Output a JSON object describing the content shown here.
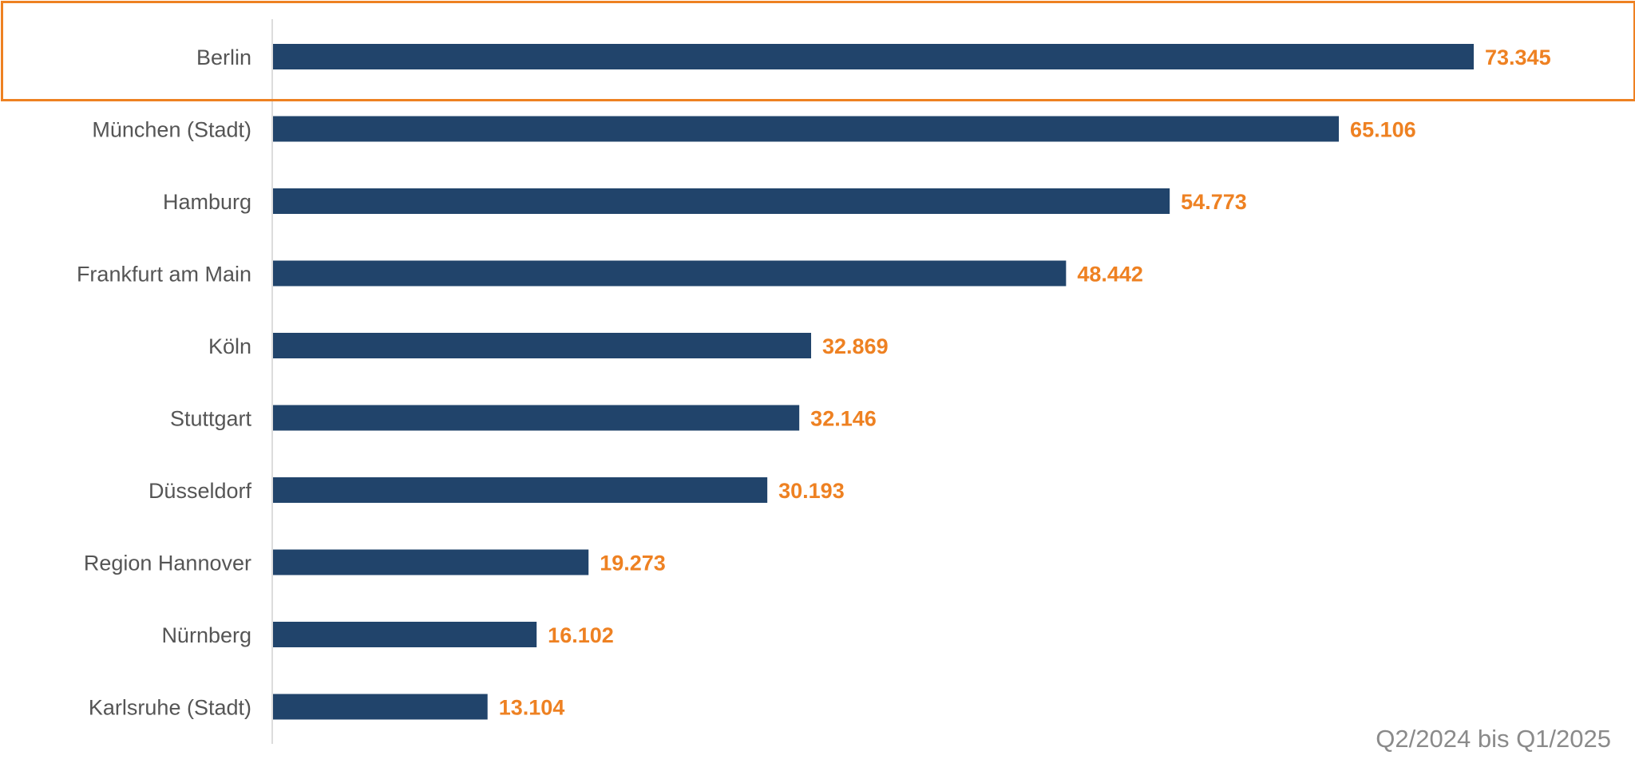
{
  "colors": {
    "bar": "#21446b",
    "value_label": "#ee8122",
    "highlight": "#ee8122",
    "axis": "#d0d0d0",
    "category_text": "#555555",
    "footnote_text": "#8a8a8a"
  },
  "highlight": {
    "category": "Berlin"
  },
  "chart_data": {
    "type": "bar",
    "orientation": "horizontal",
    "categories": [
      "Berlin",
      "München (Stadt)",
      "Hamburg",
      "Frankfurt am Main",
      "Köln",
      "Stuttgart",
      "Düsseldorf",
      "Region Hannover",
      "Nürnberg",
      "Karlsruhe (Stadt)"
    ],
    "values": [
      73345,
      65106,
      54773,
      48442,
      32869,
      32146,
      30193,
      19273,
      16102,
      13104
    ],
    "value_labels": [
      "73.345",
      "65.106",
      "54.773",
      "48.442",
      "32.869",
      "32.146",
      "30.193",
      "19.273",
      "16.102",
      "13.104"
    ],
    "xlim": [
      0,
      73345
    ],
    "grid": false,
    "legend": "none",
    "annotation": "Q2/2024 bis Q1/2025"
  }
}
